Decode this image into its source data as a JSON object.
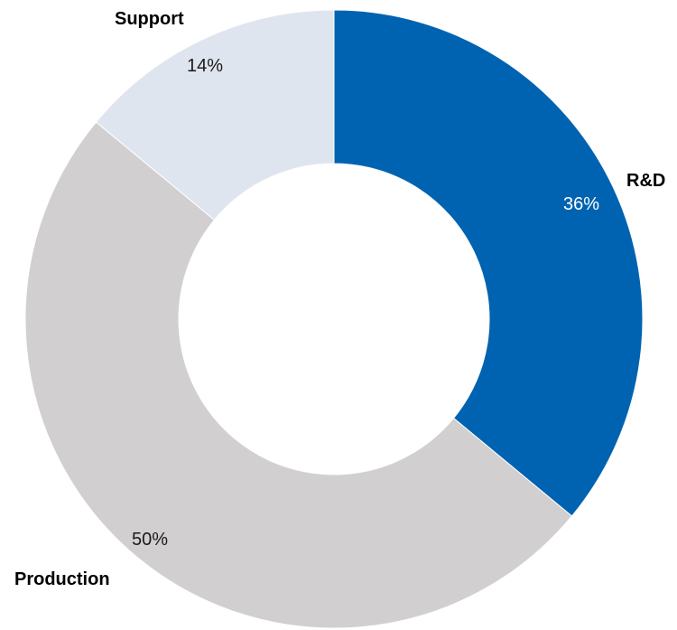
{
  "chart_data": {
    "type": "pie",
    "donut": true,
    "title": "",
    "legend": "none",
    "slices": [
      {
        "label": "R&D",
        "value": 36,
        "value_label": "36%",
        "color": "#0063B1",
        "value_label_color": "#ffffff"
      },
      {
        "label": "Production",
        "value": 50,
        "value_label": "50%",
        "color": "#D1CFCF",
        "value_label_color": "#1a1a1a"
      },
      {
        "label": "Support",
        "value": 14,
        "value_label": "14%",
        "color": "#DFE5EF",
        "value_label_color": "#1a1a1a"
      }
    ]
  }
}
